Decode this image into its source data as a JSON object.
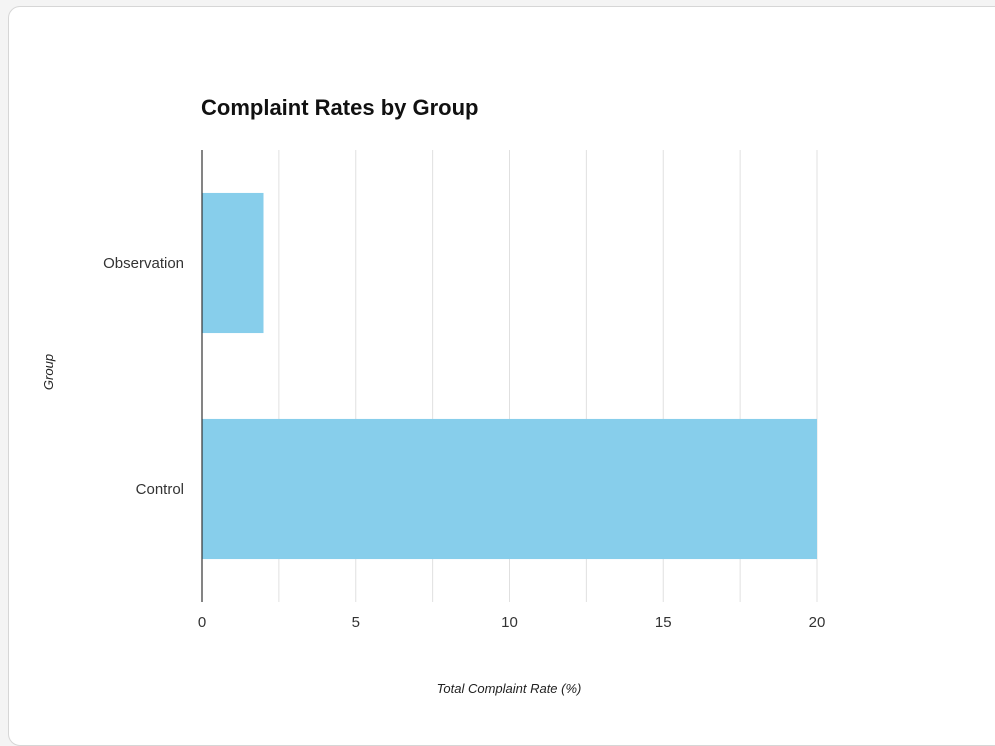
{
  "chart_data": {
    "type": "bar",
    "orientation": "horizontal",
    "title": "Complaint Rates by Group",
    "xlabel": "Total Complaint Rate (%)",
    "ylabel": "Group",
    "categories": [
      "Observation",
      "Control"
    ],
    "values": [
      2,
      20
    ],
    "xlim": [
      0,
      20
    ],
    "xticks": [
      "0",
      "5",
      "10",
      "15",
      "20"
    ],
    "grid": true,
    "legend": "none",
    "bar_color": "#87ceeb",
    "axis_color": "#333333",
    "grid_color": "#e0e0e0"
  }
}
